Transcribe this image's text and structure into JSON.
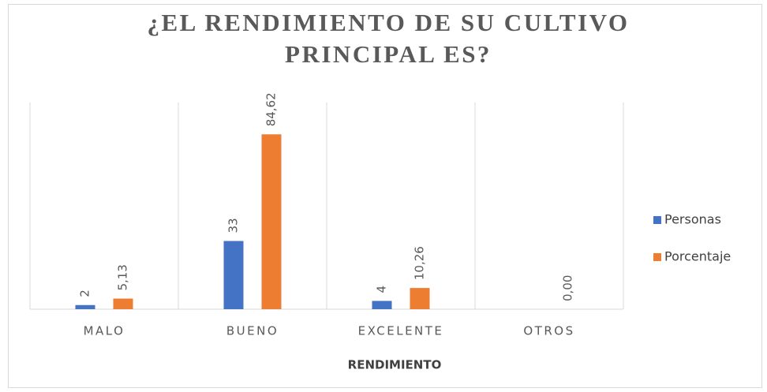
{
  "chart_data": {
    "type": "bar",
    "title": [
      "¿EL RENDIMIENTO DE SU CULTIVO",
      "PRINCIPAL ES?"
    ],
    "x_label": "RENDIMIENTO",
    "categories": [
      "MALO",
      "BUENO",
      "EXCELENTE",
      "OTROS"
    ],
    "series": [
      {
        "name": "Personas",
        "color": "#4472c4",
        "values": [
          2,
          33,
          4,
          null
        ]
      },
      {
        "name": "Porcentaje",
        "color": "#ed7d31",
        "values": [
          5.13,
          84.62,
          10.26,
          0
        ],
        "value_labels": [
          "5,13",
          "84,62",
          "10,26",
          "0,00"
        ]
      }
    ],
    "ylim": [
      0,
      100
    ],
    "legend": "right"
  }
}
